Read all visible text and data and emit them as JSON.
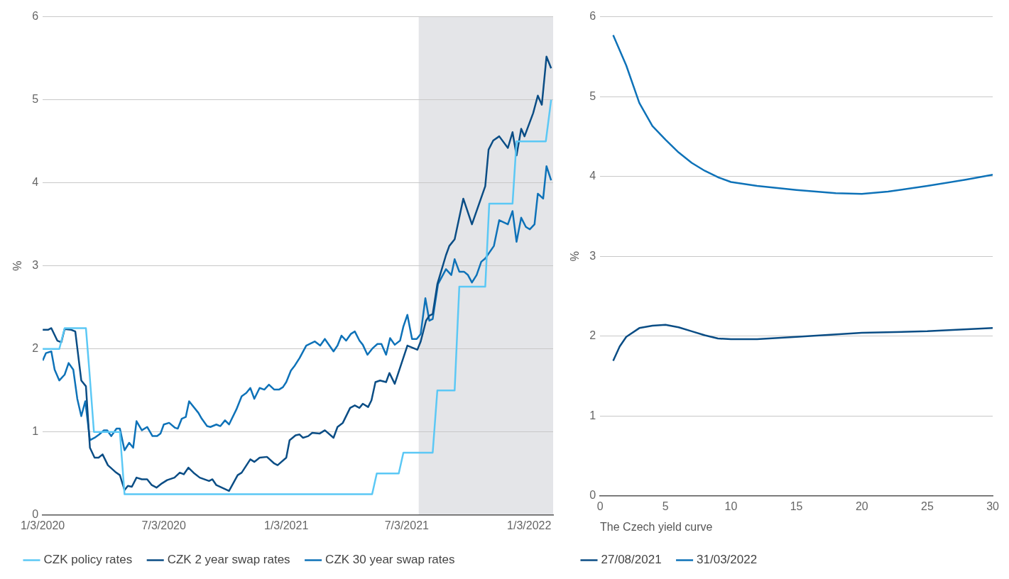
{
  "chart_data": [
    {
      "type": "line",
      "ylabel": "%",
      "xlim": [
        "2020-01-03",
        "2022-02-08"
      ],
      "xticks": [
        {
          "value": "2020-01-03",
          "label": "1/3/2020"
        },
        {
          "value": "2020-07-03",
          "label": "7/3/2020"
        },
        {
          "value": "2021-01-03",
          "label": "1/3/2021"
        },
        {
          "value": "2021-07-03",
          "label": "7/3/2021"
        },
        {
          "value": "2022-01-03",
          "label": "1/3/2022"
        }
      ],
      "ylim": [
        0,
        6
      ],
      "yticks": [
        0,
        1,
        2,
        3,
        4,
        5,
        6
      ],
      "grid": "y",
      "legend": "bottom left",
      "marker": "none",
      "line_style": "solid",
      "bands": [
        {
          "axis": "x",
          "from": "2021-07-21",
          "to": "2022-02-08",
          "color": "#e4e5e8"
        }
      ],
      "series": [
        {
          "name": "CZK policy rates",
          "color": "#5bc8f5",
          "x": [
            "2020-01-03",
            "2020-01-28",
            "2020-02-05",
            "2020-03-08",
            "2020-03-13",
            "2020-03-20",
            "2020-04-28",
            "2020-05-05",
            "2021-05-12",
            "2021-05-19",
            "2021-06-21",
            "2021-06-28",
            "2021-08-11",
            "2021-08-18",
            "2021-09-13",
            "2021-09-20",
            "2021-10-29",
            "2021-11-04",
            "2021-12-09",
            "2021-12-15",
            "2022-01-28",
            "2022-02-05"
          ],
          "values": [
            2.0,
            2.0,
            2.25,
            2.25,
            1.75,
            1.0,
            1.0,
            0.25,
            0.25,
            0.5,
            0.5,
            0.75,
            0.75,
            1.5,
            1.5,
            2.75,
            2.75,
            3.75,
            3.75,
            4.5,
            4.5,
            5.0
          ]
        },
        {
          "name": "CZK 2 year swap rates",
          "color": "#0a4d85",
          "x": [
            "2020-01-03",
            "2020-01-11",
            "2020-01-16",
            "2020-01-25",
            "2020-01-31",
            "2020-02-05",
            "2020-02-15",
            "2020-02-21",
            "2020-03-01",
            "2020-03-08",
            "2020-03-14",
            "2020-03-21",
            "2020-03-27",
            "2020-04-02",
            "2020-04-10",
            "2020-04-21",
            "2020-04-28",
            "2020-05-05",
            "2020-05-10",
            "2020-05-16",
            "2020-05-23",
            "2020-05-31",
            "2020-06-08",
            "2020-06-15",
            "2020-06-22",
            "2020-06-30",
            "2020-07-08",
            "2020-07-19",
            "2020-07-27",
            "2020-08-02",
            "2020-08-09",
            "2020-08-18",
            "2020-08-26",
            "2020-09-09",
            "2020-09-14",
            "2020-09-20",
            "2020-10-09",
            "2020-10-22",
            "2020-10-28",
            "2020-11-10",
            "2020-11-16",
            "2020-11-24",
            "2020-12-05",
            "2020-12-16",
            "2020-12-21",
            "2021-01-03",
            "2021-01-08",
            "2021-01-17",
            "2021-01-23",
            "2021-01-28",
            "2021-02-05",
            "2021-02-11",
            "2021-02-22",
            "2021-03-02",
            "2021-03-15",
            "2021-03-21",
            "2021-03-29",
            "2021-04-09",
            "2021-04-16",
            "2021-04-23",
            "2021-04-28",
            "2021-05-06",
            "2021-05-11",
            "2021-05-17",
            "2021-05-24",
            "2021-06-02",
            "2021-06-07",
            "2021-06-15",
            "2021-07-04",
            "2021-07-19",
            "2021-07-24",
            "2021-08-01",
            "2021-08-06",
            "2021-08-11",
            "2021-08-18",
            "2021-08-31",
            "2021-09-05",
            "2021-09-13",
            "2021-09-26",
            "2021-10-09",
            "2021-10-29",
            "2021-11-03",
            "2021-11-10",
            "2021-11-19",
            "2021-12-02",
            "2021-12-09",
            "2021-12-15",
            "2021-12-22",
            "2021-12-27",
            "2022-01-09",
            "2022-01-16",
            "2022-01-22",
            "2022-01-29",
            "2022-02-05"
          ],
          "values": [
            2.23,
            2.23,
            2.25,
            2.1,
            2.08,
            2.24,
            2.23,
            2.21,
            1.62,
            1.55,
            0.81,
            0.69,
            0.69,
            0.73,
            0.6,
            0.52,
            0.48,
            0.3,
            0.35,
            0.34,
            0.45,
            0.43,
            0.43,
            0.36,
            0.33,
            0.38,
            0.42,
            0.45,
            0.51,
            0.49,
            0.57,
            0.5,
            0.45,
            0.41,
            0.43,
            0.36,
            0.29,
            0.48,
            0.51,
            0.67,
            0.64,
            0.69,
            0.7,
            0.62,
            0.6,
            0.69,
            0.9,
            0.96,
            0.97,
            0.93,
            0.95,
            0.99,
            0.98,
            1.02,
            0.93,
            1.06,
            1.11,
            1.29,
            1.32,
            1.29,
            1.34,
            1.3,
            1.38,
            1.6,
            1.62,
            1.6,
            1.71,
            1.58,
            2.04,
            1.99,
            2.09,
            2.34,
            2.4,
            2.42,
            2.78,
            3.13,
            3.24,
            3.32,
            3.81,
            3.5,
            3.96,
            4.4,
            4.51,
            4.56,
            4.42,
            4.61,
            4.33,
            4.65,
            4.56,
            4.84,
            5.05,
            4.94,
            5.52,
            5.38
          ]
        },
        {
          "name": "CZK 30 year swap rates",
          "color": "#0e72b8",
          "x": [
            "2020-01-03",
            "2020-01-08",
            "2020-01-16",
            "2020-01-21",
            "2020-01-28",
            "2020-02-05",
            "2020-02-11",
            "2020-02-18",
            "2020-02-24",
            "2020-03-01",
            "2020-03-07",
            "2020-03-14",
            "2020-03-21",
            "2020-03-28",
            "2020-04-04",
            "2020-04-09",
            "2020-04-15",
            "2020-04-23",
            "2020-04-28",
            "2020-05-05",
            "2020-05-12",
            "2020-05-18",
            "2020-05-23",
            "2020-05-31",
            "2020-06-08",
            "2020-06-16",
            "2020-06-23",
            "2020-06-28",
            "2020-07-03",
            "2020-07-11",
            "2020-07-20",
            "2020-07-24",
            "2020-07-30",
            "2020-08-05",
            "2020-08-10",
            "2020-08-24",
            "2020-08-29",
            "2020-09-06",
            "2020-09-11",
            "2020-09-20",
            "2020-09-26",
            "2020-10-03",
            "2020-10-09",
            "2020-10-20",
            "2020-10-28",
            "2020-11-04",
            "2020-11-10",
            "2020-11-16",
            "2020-11-24",
            "2020-12-01",
            "2020-12-08",
            "2020-12-16",
            "2020-12-23",
            "2020-12-29",
            "2021-01-03",
            "2021-01-10",
            "2021-01-15",
            "2021-01-23",
            "2021-02-02",
            "2021-02-15",
            "2021-02-23",
            "2021-03-02",
            "2021-03-15",
            "2021-03-21",
            "2021-03-27",
            "2021-04-03",
            "2021-04-10",
            "2021-04-16",
            "2021-04-23",
            "2021-04-28",
            "2021-05-05",
            "2021-05-13",
            "2021-05-20",
            "2021-05-26",
            "2021-06-02",
            "2021-06-08",
            "2021-06-15",
            "2021-06-23",
            "2021-06-28",
            "2021-07-04",
            "2021-07-11",
            "2021-07-18",
            "2021-07-24",
            "2021-07-31",
            "2021-08-06",
            "2021-08-11",
            "2021-08-19",
            "2021-08-31",
            "2021-09-08",
            "2021-09-13",
            "2021-09-20",
            "2021-09-27",
            "2021-10-03",
            "2021-10-09",
            "2021-10-16",
            "2021-10-23",
            "2021-10-29",
            "2021-11-11",
            "2021-11-19",
            "2021-12-02",
            "2021-12-09",
            "2021-12-15",
            "2021-12-22",
            "2021-12-29",
            "2022-01-04",
            "2022-01-11",
            "2022-01-16",
            "2022-01-24",
            "2022-01-29",
            "2022-02-05"
          ],
          "values": [
            1.86,
            1.95,
            1.97,
            1.75,
            1.62,
            1.69,
            1.83,
            1.75,
            1.4,
            1.19,
            1.37,
            0.9,
            0.93,
            0.97,
            1.02,
            1.02,
            0.95,
            1.04,
            1.04,
            0.78,
            0.87,
            0.81,
            1.13,
            1.02,
            1.06,
            0.95,
            0.95,
            0.98,
            1.09,
            1.11,
            1.05,
            1.04,
            1.16,
            1.18,
            1.37,
            1.23,
            1.16,
            1.07,
            1.06,
            1.09,
            1.07,
            1.14,
            1.09,
            1.27,
            1.43,
            1.47,
            1.53,
            1.4,
            1.53,
            1.51,
            1.57,
            1.51,
            1.51,
            1.54,
            1.6,
            1.74,
            1.79,
            1.89,
            2.04,
            2.09,
            2.04,
            2.12,
            1.97,
            2.04,
            2.16,
            2.1,
            2.18,
            2.21,
            2.1,
            2.05,
            1.93,
            2.01,
            2.06,
            2.06,
            1.93,
            2.13,
            2.05,
            2.1,
            2.27,
            2.41,
            2.12,
            2.12,
            2.18,
            2.61,
            2.34,
            2.36,
            2.78,
            2.96,
            2.89,
            3.08,
            2.93,
            2.93,
            2.89,
            2.8,
            2.89,
            3.05,
            3.09,
            3.24,
            3.55,
            3.5,
            3.66,
            3.29,
            3.58,
            3.47,
            3.44,
            3.5,
            3.87,
            3.81,
            4.2,
            4.03
          ]
        }
      ]
    },
    {
      "type": "line",
      "xlabel": "The Czech yield curve",
      "ylabel": "%",
      "xlim": [
        0,
        30
      ],
      "xticks": [
        0,
        5,
        10,
        15,
        20,
        25,
        30
      ],
      "ylim": [
        0,
        6
      ],
      "yticks": [
        0,
        1,
        2,
        3,
        4,
        5,
        6
      ],
      "grid": "y",
      "legend": "bottom left",
      "marker": "none",
      "line_style": "solid",
      "series": [
        {
          "name": "27/08/2021",
          "color": "#0a4d85",
          "x": [
            1,
            1.5,
            2,
            3,
            4,
            5,
            6,
            7,
            8,
            9,
            10,
            12,
            15,
            20,
            25,
            30
          ],
          "values": [
            1.69,
            1.87,
            1.99,
            2.1,
            2.13,
            2.14,
            2.11,
            2.06,
            2.01,
            1.97,
            1.96,
            1.96,
            1.99,
            2.04,
            2.06,
            2.1
          ]
        },
        {
          "name": "31/03/2022",
          "color": "#0e72b8",
          "x": [
            1,
            2,
            3,
            4,
            5,
            6,
            7,
            8,
            9,
            10,
            12,
            15,
            18,
            20,
            22,
            25,
            28,
            30
          ],
          "values": [
            5.77,
            5.39,
            4.92,
            4.63,
            4.46,
            4.3,
            4.17,
            4.07,
            3.99,
            3.93,
            3.88,
            3.83,
            3.79,
            3.78,
            3.81,
            3.88,
            3.96,
            4.02
          ]
        }
      ]
    }
  ]
}
